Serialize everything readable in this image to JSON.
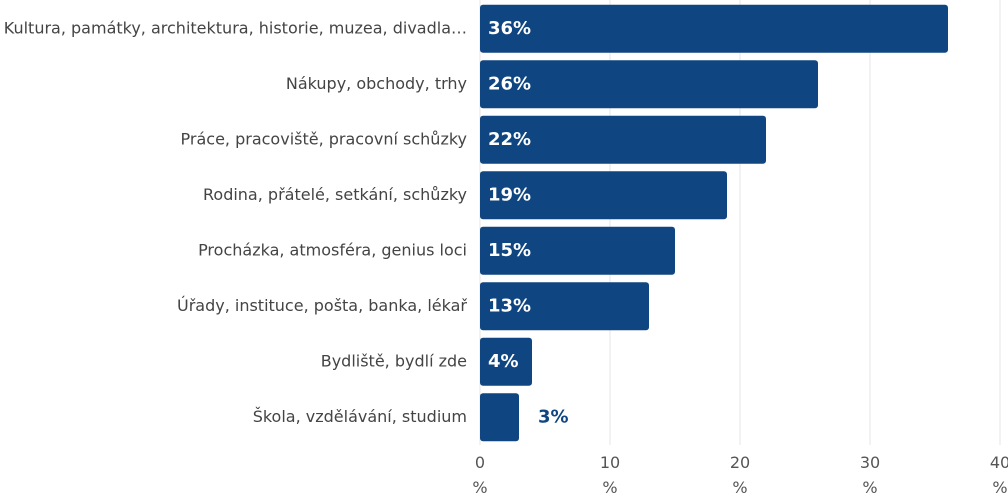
{
  "chart_data": {
    "type": "bar",
    "orientation": "horizontal",
    "categories": [
      "Kultura, památky, architektura, historie, muzea, divadla…",
      "Nákupy, obchody, trhy",
      "Práce, pracoviště, pracovní schůzky",
      "Rodina, přátelé, setkání, schůzky",
      "Procházka, atmosféra, genius loci",
      "Úřady, instituce, pošta, banka, lékař",
      "Bydliště, bydlí zde",
      "Škola, vzdělávání, studium"
    ],
    "values": [
      36,
      26,
      22,
      19,
      15,
      13,
      4,
      3
    ],
    "value_labels": [
      "36%",
      "26%",
      "22%",
      "19%",
      "15%",
      "13%",
      "4%",
      "3%"
    ],
    "color": "#0f4580",
    "xlim": [
      0,
      40
    ],
    "xticks": [
      {
        "value": 0,
        "label": "0 %"
      },
      {
        "value": 10,
        "label": "10 %"
      },
      {
        "value": 20,
        "label": "20 %"
      },
      {
        "value": 30,
        "label": "30 %"
      },
      {
        "value": 40,
        "label": "40 %"
      }
    ],
    "grid": true
  }
}
